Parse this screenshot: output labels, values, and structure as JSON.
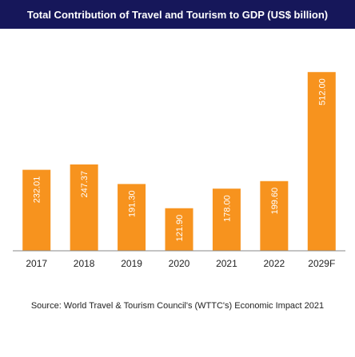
{
  "chart_data": {
    "type": "bar",
    "title": "Total Contribution of Travel and Tourism to GDP (US$ billion)",
    "categories": [
      "2017",
      "2018",
      "2019",
      "2020",
      "2021",
      "2022",
      "2029F"
    ],
    "values": [
      232.01,
      247.37,
      191.3,
      121.9,
      178.0,
      199.6,
      512.0
    ],
    "value_labels": [
      "232.01",
      "247.37",
      "191.30",
      "121.90",
      "178.00",
      "199.60",
      "512.00"
    ],
    "xlabel": "",
    "ylabel": "",
    "ylim": [
      0,
      540
    ],
    "grid": false,
    "legend": "none",
    "source": "Source: World Travel & Tourism Council's (WTTC's) Economic Impact 2021"
  },
  "colors": {
    "title_bg": "#16175a",
    "bar": "#f7931e",
    "bar_label": "#ffffff",
    "axis": "#888888"
  }
}
